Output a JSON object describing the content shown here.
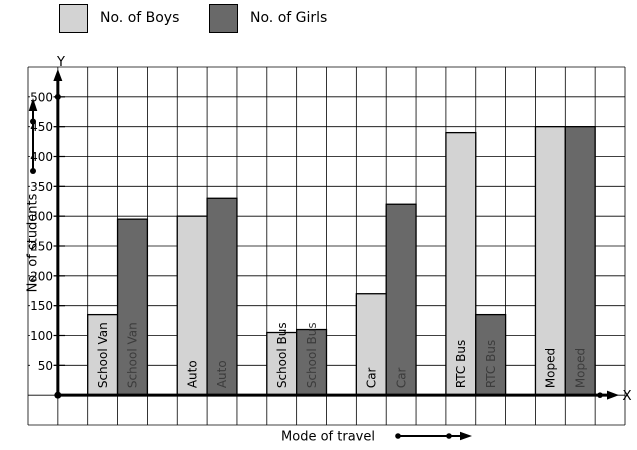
{
  "legend": {
    "boys_label": "No. of Boys",
    "girls_label": "No. of Girls"
  },
  "axes": {
    "y_letter": "Y",
    "x_letter": "X",
    "y_title": "No. of students",
    "x_title": "Mode of travel"
  },
  "colors": {
    "boys_fill": "#d3d3d3",
    "girls_fill": "#696969",
    "boys_label_text": "#000000",
    "girls_label_text": "#3c3c3c",
    "axis": "#000000",
    "grid": "#000000",
    "background": "#ffffff"
  },
  "chart_data": {
    "type": "bar",
    "categories": [
      "School Van",
      "Auto",
      "School Bus",
      "Car",
      "RTC Bus",
      "Moped"
    ],
    "series": [
      {
        "name": "No. of Boys",
        "values": [
          135,
          300,
          105,
          170,
          440,
          450
        ]
      },
      {
        "name": "No. of Girls",
        "values": [
          295,
          330,
          110,
          320,
          135,
          450
        ]
      }
    ],
    "title": "",
    "xlabel": "Mode of travel",
    "ylabel": "No. of students",
    "ylim": [
      0,
      550
    ],
    "yticks": [
      50,
      100,
      150,
      200,
      250,
      300,
      350,
      400,
      450,
      500
    ],
    "ytick_step": 50,
    "grid": true,
    "legend_position": "top"
  }
}
